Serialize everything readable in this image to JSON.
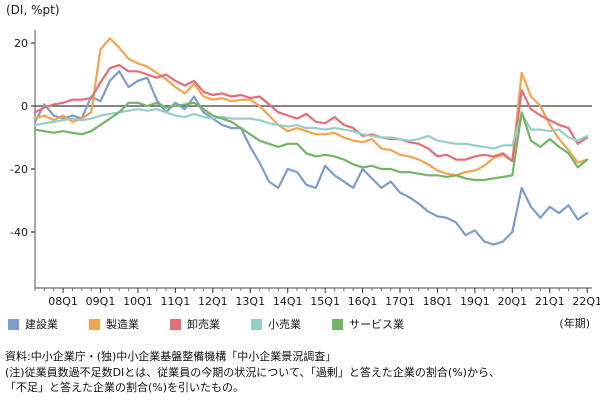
{
  "title_unit": "(DI, %pt)",
  "x_axis_unit": "(年期)",
  "notes": [
    "資料:中小企業庁・(独)中小企業基盤整備機構「中小企業景況調査」",
    "(注)従業員数過不足数DIとは、従業員の今期の状況について、「過剰」と答えた企業の割合(%)から、",
    "「不足」と答えた企業の割合(%)を引いたもの。"
  ],
  "chart_data": {
    "type": "line",
    "title": "(DI, %pt)",
    "xlabel": "(年期)",
    "ylabel": "DI, %pt",
    "ylim": [
      -55,
      25
    ],
    "yticks": [
      20,
      0,
      -20,
      -40
    ],
    "grid": false,
    "legend_position": "bottom",
    "zero_line": true,
    "x": [
      "07Q2",
      "07Q3",
      "07Q4",
      "08Q1",
      "08Q2",
      "08Q3",
      "08Q4",
      "09Q1",
      "09Q2",
      "09Q3",
      "09Q4",
      "10Q1",
      "10Q2",
      "10Q3",
      "10Q4",
      "11Q1",
      "11Q2",
      "11Q3",
      "11Q4",
      "12Q1",
      "12Q2",
      "12Q3",
      "12Q4",
      "13Q1",
      "13Q2",
      "13Q3",
      "13Q4",
      "14Q1",
      "14Q2",
      "14Q3",
      "14Q4",
      "15Q1",
      "15Q2",
      "15Q3",
      "15Q4",
      "16Q1",
      "16Q2",
      "16Q3",
      "16Q4",
      "17Q1",
      "17Q2",
      "17Q3",
      "17Q4",
      "18Q1",
      "18Q2",
      "18Q3",
      "18Q4",
      "19Q1",
      "19Q2",
      "19Q3",
      "19Q4",
      "20Q1",
      "20Q2",
      "20Q3",
      "20Q4",
      "21Q1",
      "21Q2",
      "21Q3",
      "21Q4",
      "22Q1"
    ],
    "x_tick_label_suffix": "Q1",
    "series": [
      {
        "name": "建設業",
        "color": "#7d9dcb",
        "values": [
          -5,
          0.5,
          -3,
          -4,
          -3,
          -4,
          3,
          1.5,
          8,
          11,
          6,
          8,
          9,
          2,
          -2,
          1,
          -1,
          3,
          -2,
          -4,
          -6,
          -7,
          -7,
          -13,
          -18,
          -24,
          -26,
          -20,
          -21,
          -25,
          -26,
          -19,
          -22,
          -24,
          -26,
          -20,
          -23,
          -26,
          -24,
          -27.5,
          -29,
          -31,
          -33.5,
          -35,
          -35.5,
          -37,
          -41,
          -39.5,
          -43,
          -44,
          -43,
          -40,
          -26,
          -32,
          -35.5,
          -32,
          -34,
          -31.5,
          -36,
          -34
        ]
      },
      {
        "name": "製造業",
        "color": "#f4a44e",
        "values": [
          -4,
          -3,
          -4.5,
          -3,
          -5,
          -4,
          -2,
          18,
          21.5,
          18.5,
          15,
          13.5,
          12.5,
          10.5,
          8.5,
          6,
          4,
          7,
          3,
          2,
          2.5,
          1.5,
          2,
          2,
          0,
          -3,
          -6,
          -8,
          -7,
          -8,
          -9,
          -9,
          -8.5,
          -10,
          -11,
          -11.5,
          -10.5,
          -13.5,
          -14,
          -15.5,
          -16,
          -17,
          -18.5,
          -20.5,
          -21.5,
          -22,
          -21,
          -20.5,
          -19,
          -16.5,
          -15.5,
          -17.5,
          10.5,
          3,
          0,
          -6,
          -10.5,
          -14,
          -18,
          -17
        ]
      },
      {
        "name": "卸売業",
        "color": "#e66c78",
        "values": [
          -2,
          -0.5,
          0.5,
          1,
          2,
          2,
          2.5,
          7.5,
          12,
          13,
          11,
          11,
          10,
          9,
          10,
          8,
          6.5,
          8,
          4.5,
          3.5,
          4,
          3,
          3.5,
          2.5,
          3,
          0.5,
          -2,
          -3,
          -4,
          -2.5,
          -5,
          -5.5,
          -3.5,
          -6,
          -7,
          -9.5,
          -9,
          -10,
          -10.5,
          -10.5,
          -11.5,
          -12,
          -13.5,
          -16,
          -15.5,
          -17,
          -17,
          -16,
          -15.5,
          -16,
          -15,
          -17.5,
          5,
          -1,
          -3,
          -4.5,
          -6,
          -7,
          -12,
          -10
        ]
      },
      {
        "name": "小売業",
        "color": "#98cdc8",
        "values": [
          -6,
          -5.5,
          -5,
          -4.5,
          -4,
          -4.5,
          -4,
          -3,
          -2.5,
          -2,
          -1.5,
          -1,
          -1.5,
          -1,
          -2,
          -3,
          -3.5,
          -2.5,
          -3.5,
          -4,
          -3.5,
          -4,
          -4,
          -4,
          -4.5,
          -5.5,
          -6,
          -6.5,
          -6,
          -7,
          -7,
          -7.5,
          -7,
          -7.5,
          -8,
          -9,
          -9.5,
          -10,
          -10,
          -10.5,
          -11,
          -10.5,
          -9.5,
          -11,
          -11.5,
          -12,
          -12,
          -12.5,
          -13,
          -13.5,
          -12.5,
          -12.5,
          -2.5,
          -7.5,
          -7.5,
          -8,
          -7.5,
          -10,
          -11,
          -9.5
        ]
      },
      {
        "name": "サービス業",
        "color": "#72b566",
        "values": [
          -7.5,
          -8,
          -8.5,
          -8,
          -8.5,
          -9,
          -8,
          -6,
          -4,
          -2,
          1,
          1,
          0,
          1,
          -0.5,
          0,
          0.5,
          1,
          -1,
          -3,
          -4,
          -5,
          -7,
          -9,
          -11,
          -12,
          -13,
          -12,
          -12,
          -15,
          -16,
          -15.5,
          -16,
          -17,
          -18.5,
          -19.5,
          -19,
          -20,
          -20,
          -21,
          -21,
          -21.5,
          -22,
          -22,
          -22.5,
          -22,
          -23,
          -23.5,
          -23.5,
          -23,
          -22.5,
          -22,
          -2,
          -11,
          -13,
          -10.5,
          -13,
          -15,
          -19.5,
          -17
        ]
      }
    ],
    "colors": {
      "axis": "#707070",
      "zero_line": "#3c3c3c",
      "tick_text": "#1a1a1a"
    }
  }
}
